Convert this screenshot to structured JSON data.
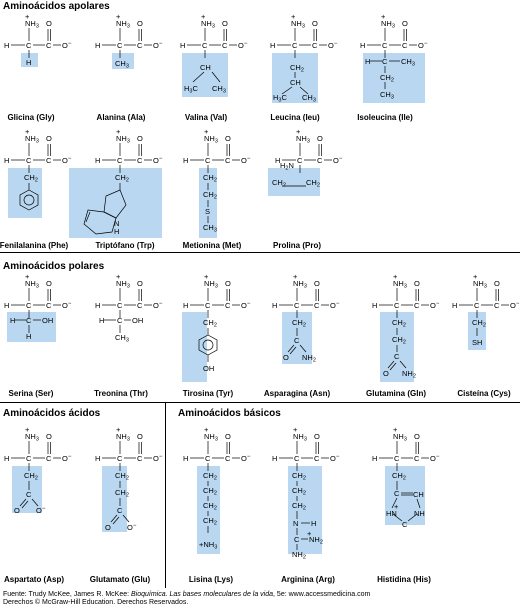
{
  "sections": {
    "apolares": "Aminoácidos apolares",
    "polares": "Aminoácidos polares",
    "acidos": "Aminoácidos ácidos",
    "basicos": "Aminoácidos básicos"
  },
  "amino_acids": {
    "gly": "Glicina (Gly)",
    "ala": "Alanina (Ala)",
    "val": "Valina (Val)",
    "leu": "Leucina (Ieu)",
    "ile": "Isoleucina (Ile)",
    "phe": "Fenilalanina (Phe)",
    "trp": "Triptófano (Trp)",
    "met": "Metionina (Met)",
    "pro": "Prolina (Pro)",
    "ser": "Serina (Ser)",
    "thr": "Treonina (Thr)",
    "tyr": "Tirosina (Tyr)",
    "asn": "Asparagina (Asn)",
    "gln": "Glutamina (Gln)",
    "cys": "Cisteína (Cys)",
    "asp": "Aspartato (Asp)",
    "glu": "Glutamato (Glu)",
    "lys": "Lisina (Lys)",
    "arg": "Arginina (Arg)",
    "his": "Histidina (His)"
  },
  "footer": {
    "source_prefix": "Fuente: Trudy McKee, James R. McKee: ",
    "book_title": "Bioquímica. Las bases moleculares de la vida",
    "source_suffix": ", 5e: www.accessmedicina.com",
    "rights": "Derechos © McGraw-Hill Education. Derechos Reservados."
  },
  "colors": {
    "highlight": "#b9d7f0",
    "line": "#000000"
  }
}
